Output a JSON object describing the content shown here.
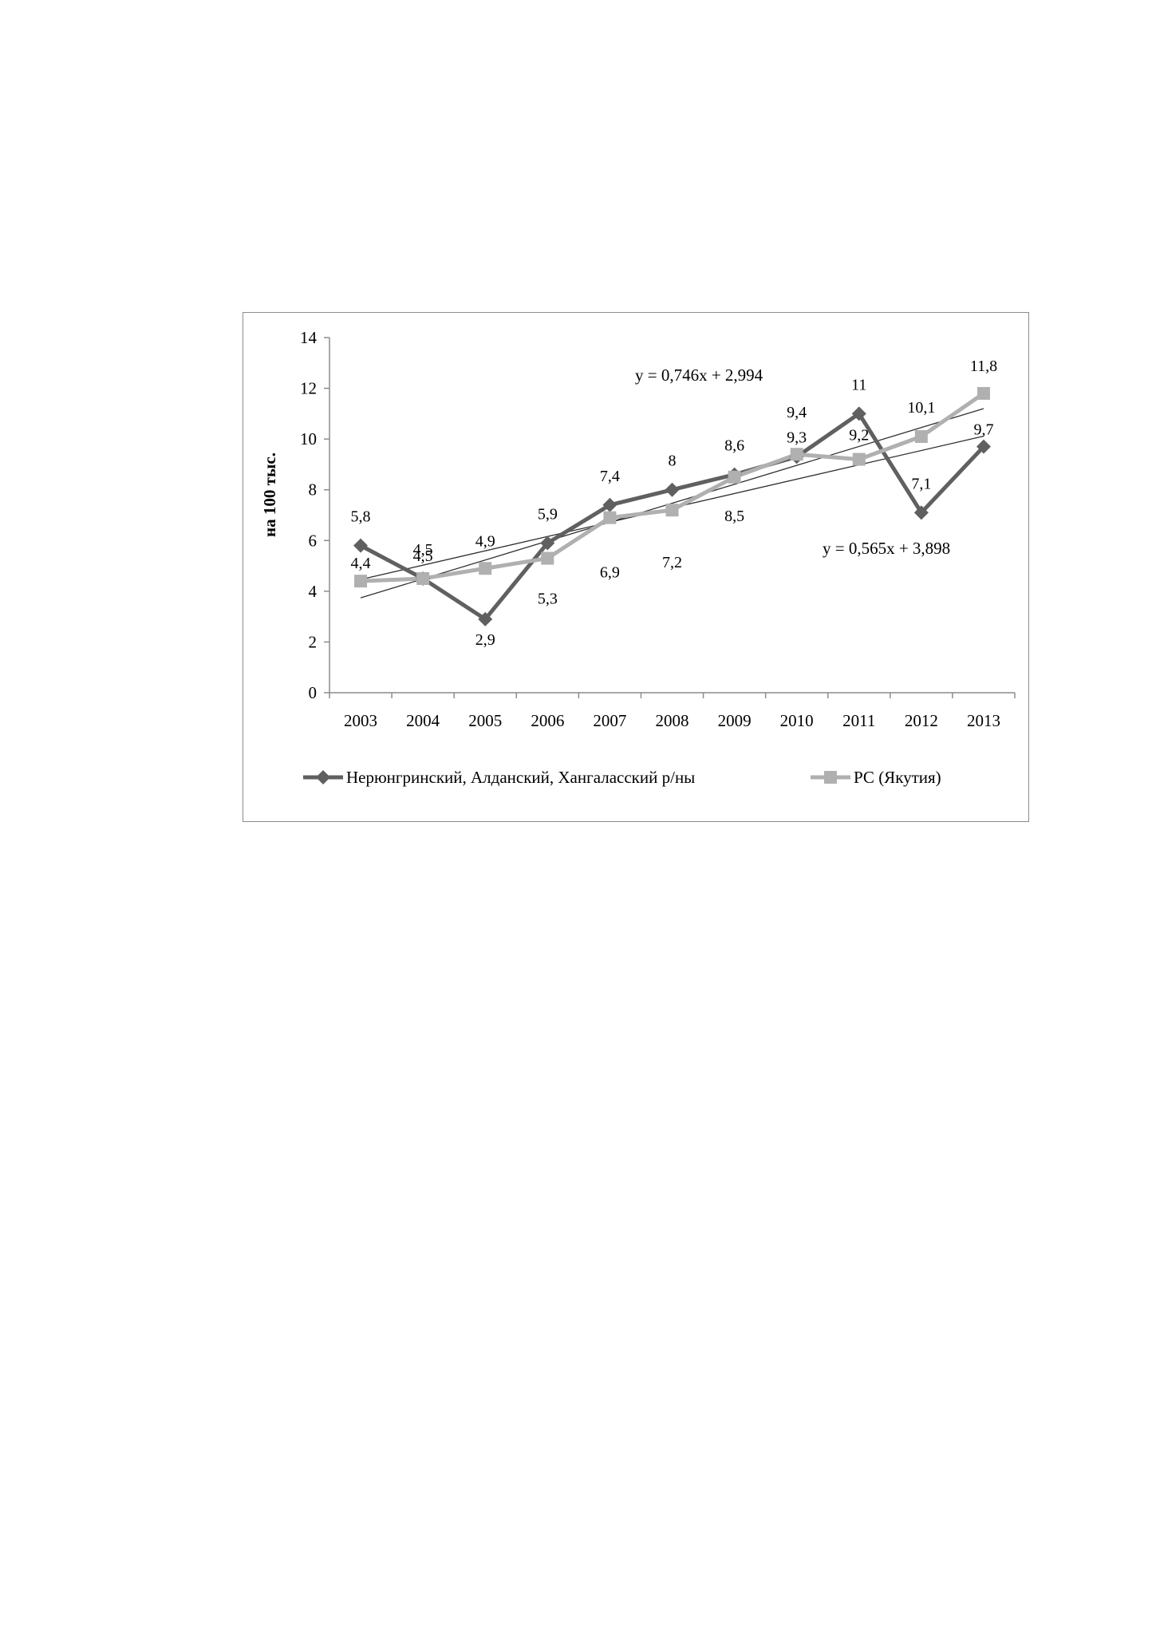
{
  "chart_data": {
    "type": "line",
    "title": "",
    "xlabel": "",
    "ylabel": "на 100 тыс.",
    "ylim": [
      0,
      14
    ],
    "yticks": [
      0,
      2,
      4,
      6,
      8,
      10,
      12,
      14
    ],
    "categories": [
      "2003",
      "2004",
      "2005",
      "2006",
      "2007",
      "2008",
      "2009",
      "2010",
      "2011",
      "2012",
      "2013"
    ],
    "grid": false,
    "legend_position": "bottom",
    "series": [
      {
        "name": "Нерюнгринский, Алданский, Хангаласский  р/ны",
        "color": "#606060",
        "marker": "diamond",
        "values": [
          5.8,
          4.5,
          2.9,
          5.9,
          7.4,
          8,
          8.6,
          9.3,
          11,
          7.1,
          9.7
        ],
        "labels": [
          "5,8",
          "4,5",
          "2,9",
          "5,9",
          "7,4",
          "8",
          "8,6",
          "9,3",
          "11",
          "7,1",
          "9,7"
        ]
      },
      {
        "name": "РС (Якутия)",
        "color": "#b0b0b0",
        "marker": "square",
        "values": [
          4.4,
          4.5,
          4.9,
          5.3,
          6.9,
          7.2,
          8.5,
          9.4,
          9.2,
          10.1,
          11.8
        ],
        "labels": [
          "4,4",
          "4,5",
          "4,9",
          "5,3",
          "6,9",
          "7,2",
          "8,5",
          "9,4",
          "9,2",
          "10,1",
          "11,8"
        ]
      }
    ],
    "trendlines": [
      {
        "slope": 0.746,
        "intercept": 2.994,
        "equation": "y = 0,746x + 2,994",
        "color": "#303030"
      },
      {
        "slope": 0.565,
        "intercept": 3.898,
        "equation": "y = 0,565x + 3,898",
        "color": "#303030"
      }
    ]
  }
}
